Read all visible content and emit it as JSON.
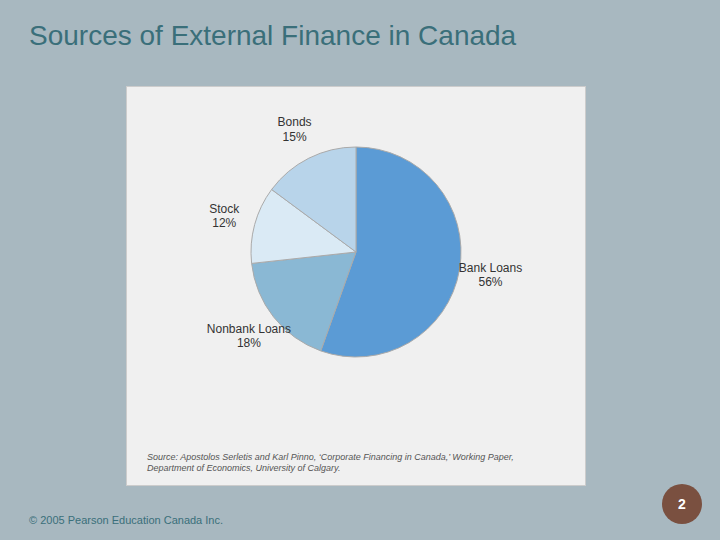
{
  "chart_data": {
    "type": "pie",
    "title": "Sources of External Finance in Canada",
    "categories": [
      "Bank Loans",
      "Nonbank Loans",
      "Stock",
      "Bonds"
    ],
    "values": [
      56,
      18,
      12,
      15
    ],
    "value_labels": [
      "56%",
      "18%",
      "12%",
      "15%"
    ],
    "colors": [
      "#5b9bd5",
      "#8ab8d4",
      "#daeaf5",
      "#b8d4ea"
    ],
    "data_labels": true,
    "annotations": [
      "Source: Apostolos Serletis and Karl Pinno, ‘Corporate Financing in Canada,’ Working Paper,\nDepartment of Economics, University of Calgary.",
      "© 2005 Pearson Education Canada Inc.",
      "2"
    ]
  }
}
